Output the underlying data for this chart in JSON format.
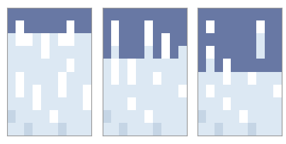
{
  "fig_width": 4.04,
  "fig_height": 2.05,
  "dpi": 100,
  "background_color": "#ffffff",
  "border_color": "#999999",
  "panel_bg": "#dce8f3",
  "sand_color": "#6878a4",
  "white_color": "#ffffff",
  "light_color": "#c5d5e5",
  "n_cols": 10,
  "n_rows": 10,
  "panels": [
    {
      "grid": [
        [
          4,
          4,
          4,
          4,
          4,
          4,
          4,
          4,
          4,
          4
        ],
        [
          4,
          2,
          4,
          4,
          4,
          4,
          4,
          2,
          4,
          4
        ],
        [
          0,
          2,
          2,
          0,
          2,
          0,
          2,
          2,
          0,
          0
        ],
        [
          0,
          0,
          0,
          0,
          2,
          0,
          0,
          0,
          0,
          0
        ],
        [
          0,
          0,
          0,
          0,
          0,
          0,
          0,
          2,
          0,
          0
        ],
        [
          0,
          2,
          0,
          0,
          0,
          0,
          2,
          0,
          0,
          0
        ],
        [
          0,
          2,
          0,
          2,
          0,
          0,
          2,
          0,
          0,
          2
        ],
        [
          0,
          0,
          0,
          2,
          0,
          0,
          0,
          0,
          0,
          2
        ],
        [
          1,
          0,
          0,
          0,
          0,
          2,
          0,
          0,
          0,
          0
        ],
        [
          0,
          0,
          1,
          0,
          0,
          0,
          1,
          0,
          0,
          0
        ]
      ]
    },
    {
      "grid": [
        [
          4,
          4,
          4,
          4,
          4,
          4,
          4,
          4,
          4,
          4
        ],
        [
          4,
          2,
          4,
          4,
          4,
          2,
          4,
          4,
          4,
          4
        ],
        [
          4,
          2,
          4,
          4,
          4,
          2,
          4,
          2,
          4,
          4
        ],
        [
          4,
          0,
          4,
          4,
          4,
          0,
          4,
          2,
          4,
          0
        ],
        [
          0,
          2,
          0,
          2,
          0,
          0,
          0,
          0,
          0,
          0
        ],
        [
          0,
          2,
          0,
          2,
          0,
          0,
          2,
          0,
          0,
          0
        ],
        [
          0,
          0,
          0,
          0,
          0,
          0,
          0,
          0,
          0,
          2
        ],
        [
          0,
          0,
          0,
          2,
          0,
          0,
          0,
          0,
          0,
          0
        ],
        [
          1,
          0,
          0,
          0,
          0,
          2,
          0,
          0,
          0,
          0
        ],
        [
          0,
          0,
          1,
          0,
          0,
          0,
          1,
          0,
          0,
          0
        ]
      ]
    },
    {
      "grid": [
        [
          4,
          4,
          4,
          4,
          4,
          4,
          4,
          4,
          4,
          4
        ],
        [
          4,
          2,
          4,
          4,
          4,
          4,
          4,
          2,
          4,
          4
        ],
        [
          4,
          4,
          4,
          4,
          4,
          4,
          4,
          0,
          4,
          4
        ],
        [
          4,
          2,
          4,
          4,
          4,
          4,
          4,
          0,
          4,
          4
        ],
        [
          4,
          0,
          4,
          2,
          4,
          4,
          4,
          4,
          4,
          4
        ],
        [
          0,
          0,
          0,
          2,
          0,
          0,
          2,
          0,
          0,
          0
        ],
        [
          0,
          2,
          0,
          0,
          0,
          0,
          0,
          0,
          0,
          2
        ],
        [
          0,
          0,
          0,
          2,
          0,
          0,
          0,
          0,
          0,
          0
        ],
        [
          1,
          0,
          0,
          0,
          0,
          2,
          0,
          0,
          0,
          0
        ],
        [
          0,
          0,
          1,
          0,
          0,
          0,
          1,
          0,
          0,
          0
        ]
      ]
    }
  ]
}
